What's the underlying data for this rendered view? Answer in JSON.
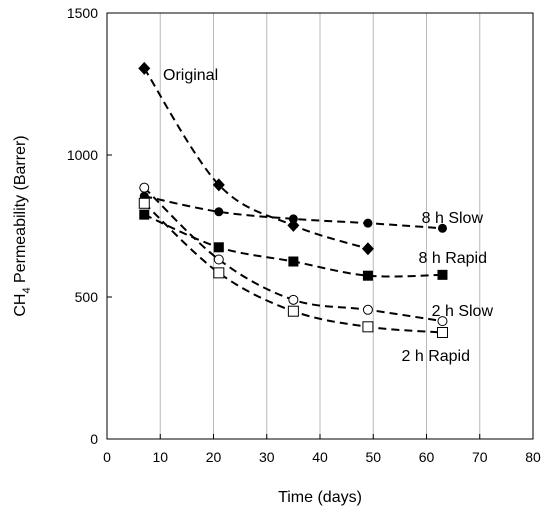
{
  "chart_data": {
    "type": "scatter",
    "xlabel": "Time (days)",
    "ylabel": {
      "prefix": "CH",
      "subscript": "4",
      "suffix": " Permeability (Barrer)"
    },
    "xlim": [
      0,
      80
    ],
    "ylim": [
      0,
      1500
    ],
    "xticks": [
      0,
      10,
      20,
      30,
      40,
      50,
      60,
      70,
      80
    ],
    "yticks": [
      0,
      500,
      1000,
      1500
    ],
    "grid": {
      "vertical": true,
      "horizontal": false
    },
    "series": [
      {
        "name": "Original",
        "marker": "diamond",
        "x": [
          7,
          21,
          35,
          49
        ],
        "y": [
          1305,
          895,
          752,
          670
        ]
      },
      {
        "name": "8 h Slow",
        "marker": "filled-circle",
        "x": [
          7,
          21,
          35,
          49,
          63
        ],
        "y": [
          855,
          800,
          775,
          760,
          742
        ]
      },
      {
        "name": "8 h Rapid",
        "marker": "filled-square",
        "x": [
          7,
          21,
          35,
          49,
          63
        ],
        "y": [
          790,
          675,
          625,
          575,
          578
        ]
      },
      {
        "name": "2 h Slow",
        "marker": "open-circle",
        "x": [
          7,
          21,
          35,
          49,
          63
        ],
        "y": [
          885,
          632,
          490,
          455,
          415
        ]
      },
      {
        "name": "2 h Rapid",
        "marker": "open-square",
        "x": [
          7,
          21,
          35,
          49,
          63
        ],
        "y": [
          830,
          585,
          450,
          395,
          375
        ]
      }
    ]
  }
}
